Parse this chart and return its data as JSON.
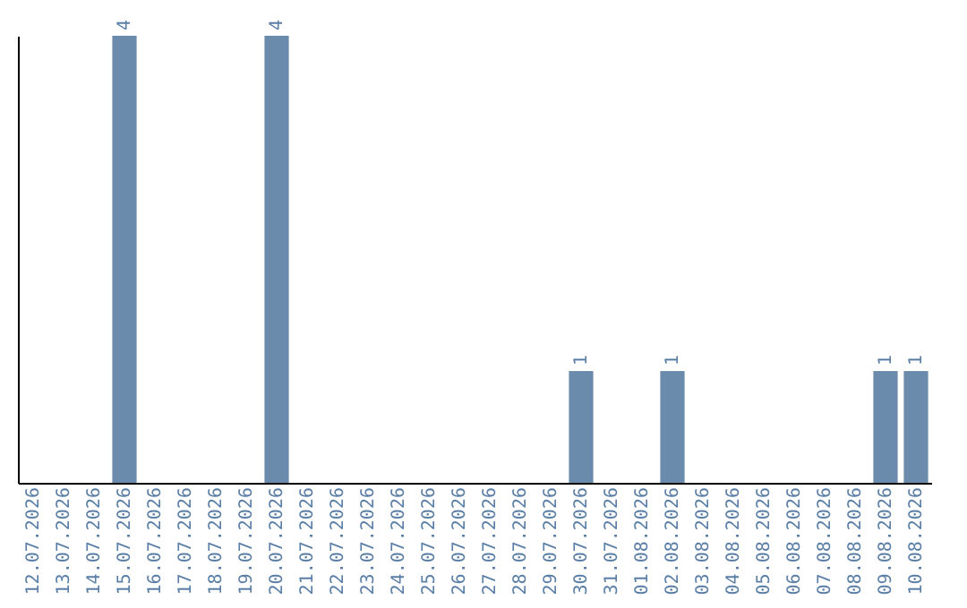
{
  "chart_data": {
    "type": "bar",
    "categories": [
      "12.07.2026",
      "13.07.2026",
      "14.07.2026",
      "15.07.2026",
      "16.07.2026",
      "17.07.2026",
      "18.07.2026",
      "19.07.2026",
      "20.07.2026",
      "21.07.2026",
      "22.07.2026",
      "23.07.2026",
      "24.07.2026",
      "25.07.2026",
      "26.07.2026",
      "27.07.2026",
      "28.07.2026",
      "29.07.2026",
      "30.07.2026",
      "31.07.2026",
      "01.08.2026",
      "02.08.2026",
      "03.08.2026",
      "04.08.2026",
      "05.08.2026",
      "06.08.2026",
      "07.08.2026",
      "08.08.2026",
      "09.08.2026",
      "10.08.2026"
    ],
    "values": [
      0,
      0,
      0,
      4,
      0,
      0,
      0,
      0,
      4,
      0,
      0,
      0,
      0,
      0,
      0,
      0,
      0,
      0,
      1,
      0,
      0,
      1,
      0,
      0,
      0,
      0,
      0,
      0,
      1,
      1
    ],
    "value_labels": [
      null,
      null,
      null,
      "4",
      null,
      null,
      null,
      null,
      "4",
      null,
      null,
      null,
      null,
      null,
      null,
      null,
      null,
      null,
      "1",
      null,
      null,
      "1",
      null,
      null,
      null,
      null,
      null,
      null,
      "1",
      "1"
    ],
    "color": "#6a8bab",
    "tick_labels": "x",
    "grid": false
  }
}
